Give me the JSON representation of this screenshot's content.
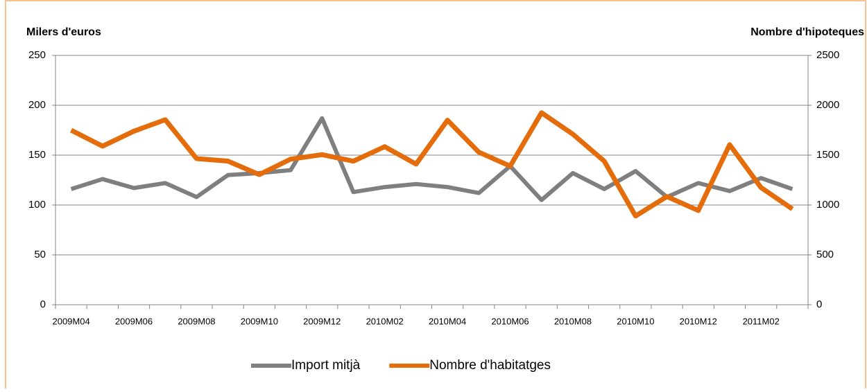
{
  "chart_data": {
    "type": "line",
    "y_label": "Milers d'euros",
    "y2_label": "Nombre d'hipoteques",
    "categories": [
      "2009M04",
      null,
      "2009M06",
      null,
      "2009M08",
      null,
      "2009M10",
      null,
      "2009M12",
      null,
      "2010M02",
      null,
      "2010M04",
      null,
      "2010M06",
      null,
      "2010M08",
      null,
      "2010M10",
      null,
      "2010M12",
      null,
      "2011M02",
      null
    ],
    "series": [
      {
        "name": "Import mitjà",
        "color": "#7f7f7f",
        "axis": "y",
        "values": [
          116,
          126,
          117,
          122,
          108,
          130,
          132,
          135,
          187,
          113,
          118,
          121,
          118,
          112,
          139,
          105,
          132,
          116,
          134,
          108,
          122,
          114,
          127,
          116
        ]
      },
      {
        "name": "Nombre d'habitatges",
        "color": "#e46c0a",
        "axis": "y2",
        "values": [
          1750,
          1590,
          1740,
          1855,
          1465,
          1440,
          1305,
          1460,
          1505,
          1440,
          1585,
          1410,
          1850,
          1530,
          1390,
          1925,
          1710,
          1440,
          890,
          1085,
          945,
          1605,
          1175,
          960
        ]
      }
    ],
    "ylim": [
      0,
      250
    ],
    "yticks": [
      0,
      50,
      100,
      150,
      200,
      250
    ],
    "y2lim": [
      0,
      2500
    ],
    "y2ticks": [
      0,
      500,
      1000,
      1500,
      2000,
      2500
    ],
    "grid": true,
    "legend": "bottom"
  }
}
